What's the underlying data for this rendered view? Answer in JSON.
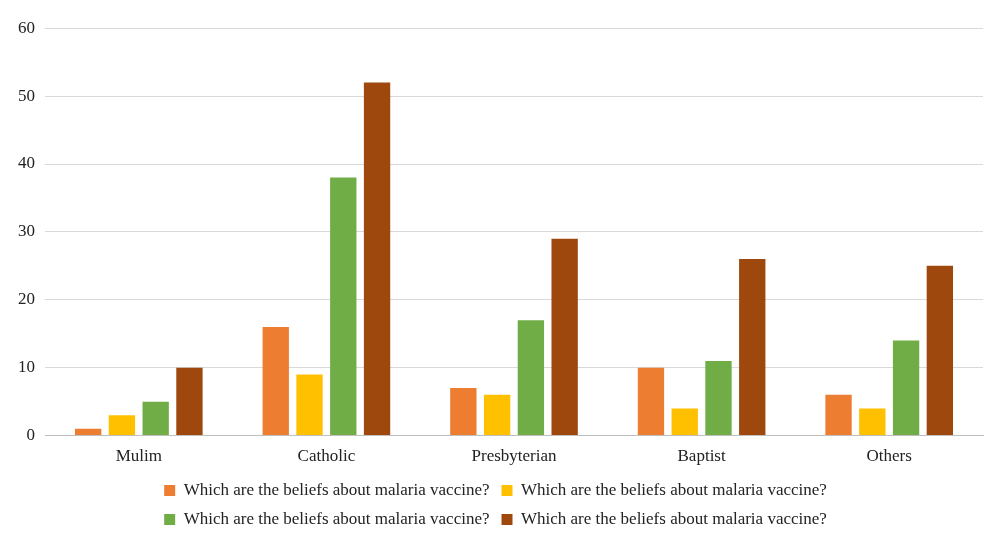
{
  "chart_data": {
    "type": "bar",
    "categories": [
      "Mulim",
      "Catholic",
      "Presbyterian",
      "Baptist",
      "Others"
    ],
    "series": [
      {
        "name": "Which are the beliefs about malaria vaccine?",
        "color": "#ed7d31",
        "values": [
          1,
          16,
          7,
          10,
          6
        ]
      },
      {
        "name": "Which are the beliefs about malaria vaccine?",
        "color": "#ffc000",
        "values": [
          3,
          9,
          6,
          4,
          4
        ]
      },
      {
        "name": "Which are the beliefs about malaria vaccine?",
        "color": "#70ad47",
        "values": [
          5,
          38,
          17,
          11,
          14
        ]
      },
      {
        "name": "Which are the beliefs about malaria vaccine?",
        "color": "#9e480e",
        "values": [
          10,
          52,
          29,
          26,
          25
        ]
      }
    ],
    "ylim": [
      0,
      60
    ],
    "yticks": [
      0,
      10,
      20,
      30,
      40,
      50,
      60
    ],
    "grid": "y",
    "legend": "bottom"
  }
}
